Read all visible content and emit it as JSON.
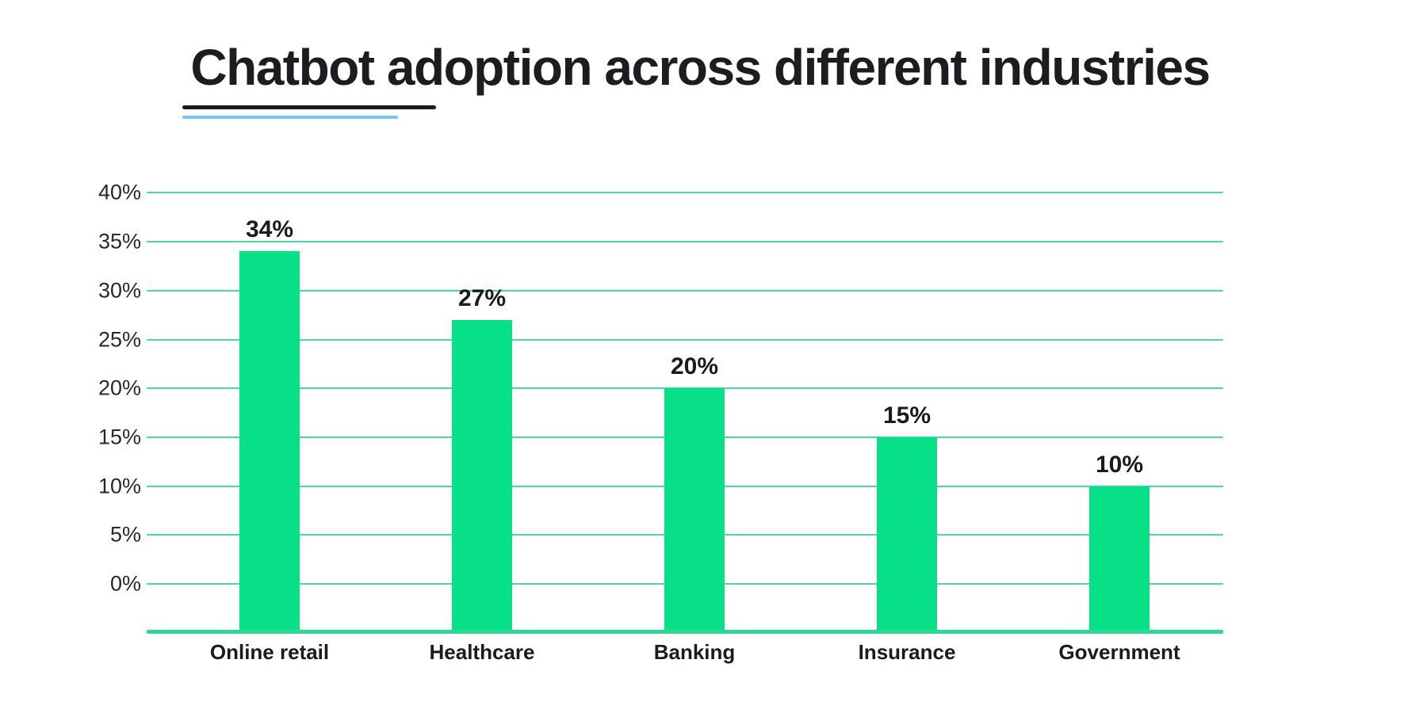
{
  "page": {
    "background_color": "#ffffff"
  },
  "header": {
    "title": "Chatbot adoption across different industries",
    "title_color": "#1c1c21",
    "underline_primary_color": "#1b1b1f",
    "underline_accent_color": "#76c8ee"
  },
  "chart_data": {
    "type": "bar",
    "title": "Chatbot adoption across different industries",
    "categories": [
      "Online retail",
      "Healthcare",
      "Banking",
      "Insurance",
      "Government"
    ],
    "values": [
      34,
      27,
      20,
      15,
      10
    ],
    "value_labels": [
      "34%",
      "27%",
      "20%",
      "15%",
      "10%"
    ],
    "xlabel": "",
    "ylabel": "",
    "ylim": [
      0,
      40
    ],
    "y_tick_step": 5,
    "y_tick_labels": [
      "0%",
      "5%",
      "10%",
      "15%",
      "20%",
      "25%",
      "30%",
      "35%",
      "40%"
    ],
    "grid": true,
    "legend": false,
    "bar_color": "#07e087",
    "gridline_color": "#4fd4a2",
    "baseline_color": "#2fd694",
    "tick_label_color": "#28282e",
    "value_label_color": "#1b1b1f",
    "category_label_color": "#1b1b1f"
  }
}
